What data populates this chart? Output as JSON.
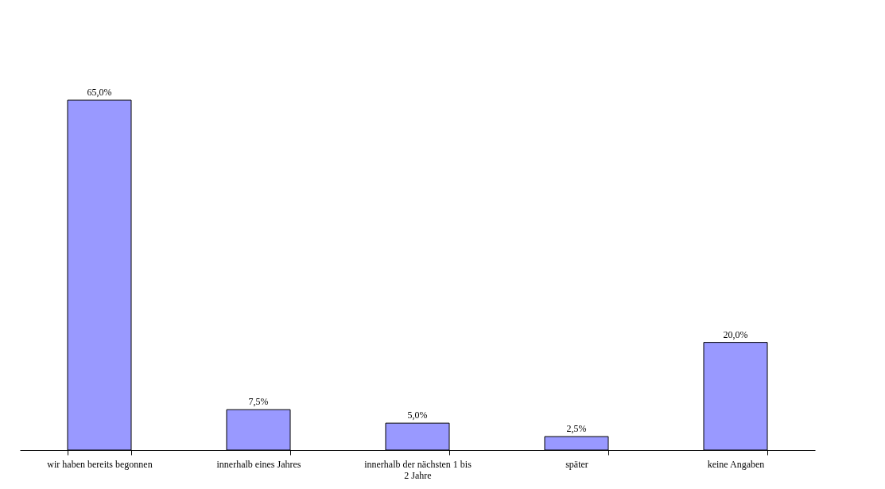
{
  "chart_data": {
    "type": "bar",
    "categories": [
      "wir haben bereits begonnen",
      "innerhalb eines Jahres",
      "innerhalb der nächsten 1 bis 2 Jahre",
      "später",
      "keine Angaben"
    ],
    "values": [
      65,
      7.5,
      5,
      2.5,
      20
    ],
    "value_labels": [
      "65,0%",
      "7,5%",
      "5,0%",
      "2,5%",
      "20,0%"
    ],
    "color": "#9999ff",
    "tick_labels": "x",
    "grid": false
  }
}
